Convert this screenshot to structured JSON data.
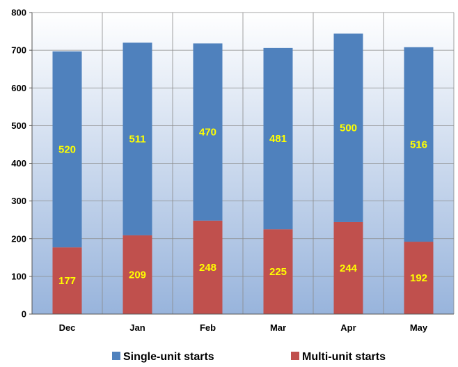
{
  "chart_data": {
    "type": "bar",
    "stacked": true,
    "categories": [
      "Dec",
      "Jan",
      "Feb",
      "Mar",
      "Apr",
      "May"
    ],
    "series": [
      {
        "name": "Multi-unit starts",
        "values": [
          177,
          209,
          248,
          225,
          244,
          192
        ],
        "color": "#c0504d"
      },
      {
        "name": "Single-unit starts",
        "values": [
          520,
          511,
          470,
          481,
          500,
          516
        ],
        "color": "#4f81bd"
      }
    ],
    "ylim": [
      0,
      800
    ],
    "yticks": [
      0,
      100,
      200,
      300,
      400,
      500,
      600,
      700,
      800
    ],
    "grid": true,
    "legend_position": "bottom",
    "legend_order": [
      "Single-unit starts",
      "Multi-unit starts"
    ],
    "data_label_color": "#ffff00",
    "plot_background_top": "#ffffff",
    "plot_background_bottom": "#98b4dc"
  }
}
